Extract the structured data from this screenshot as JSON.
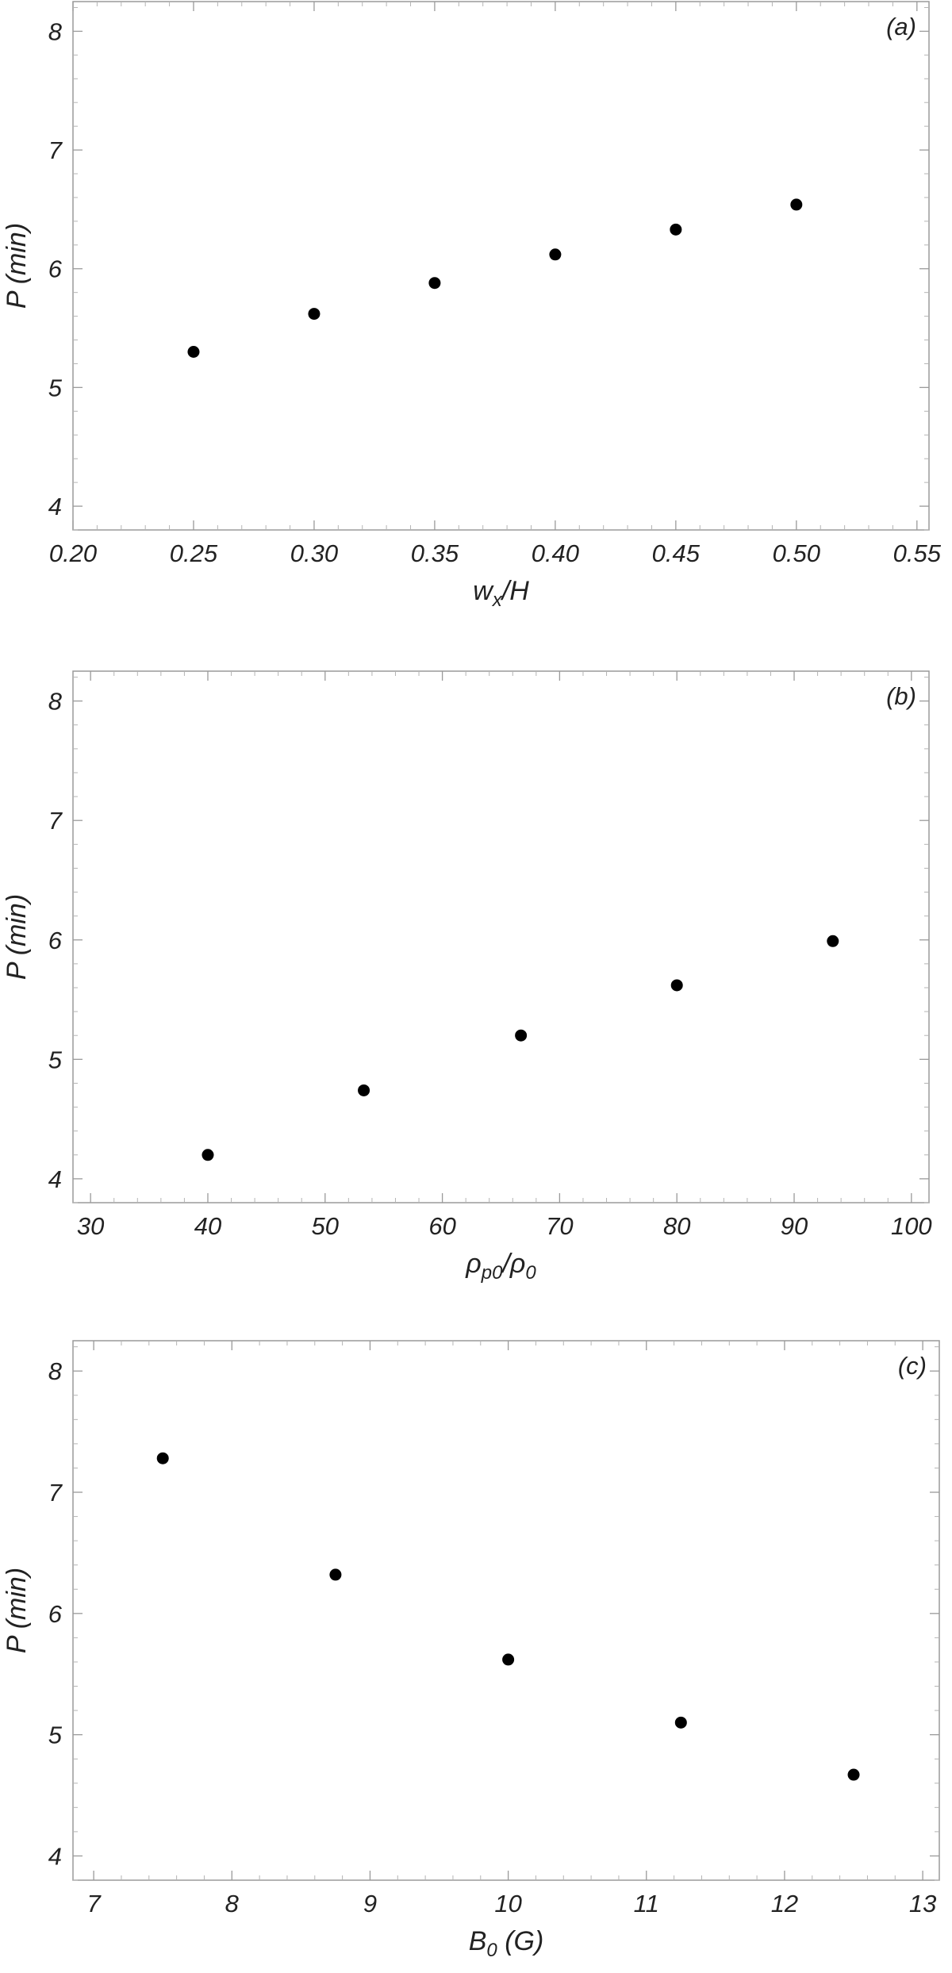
{
  "chart_data": [
    {
      "type": "scatter",
      "panel_label": "(a)",
      "x": [
        0.25,
        0.3,
        0.35,
        0.4,
        0.45,
        0.5
      ],
      "y": [
        5.3,
        5.62,
        5.88,
        6.12,
        6.33,
        6.54
      ],
      "xlim": [
        0.2,
        0.555
      ],
      "ylim": [
        3.8,
        8.25
      ],
      "xticks": [
        "0.20",
        "0.25",
        "0.30",
        "0.35",
        "0.40",
        "0.45",
        "0.50",
        "0.55"
      ],
      "yticks": [
        "4",
        "5",
        "6",
        "7",
        "8"
      ],
      "xlabel": {
        "base": "w",
        "sub": "x",
        "rest": "/H"
      },
      "ylabel": "P (min)",
      "grid": false,
      "marker_color": "#000000"
    },
    {
      "type": "scatter",
      "panel_label": "(b)",
      "x": [
        40.0,
        53.3,
        66.7,
        80.0,
        93.3
      ],
      "y": [
        4.2,
        4.74,
        5.2,
        5.62,
        5.99
      ],
      "xlim": [
        28.5,
        101.5
      ],
      "ylim": [
        3.8,
        8.25
      ],
      "xticks": [
        "30",
        "40",
        "50",
        "60",
        "70",
        "80",
        "90",
        "100"
      ],
      "yticks": [
        "4",
        "5",
        "6",
        "7",
        "8"
      ],
      "xlabel": {
        "base": "ρ",
        "sub": "p0",
        "rest": "/ρ",
        "sub2": "0"
      },
      "ylabel": "P (min)",
      "grid": false,
      "marker_color": "#000000"
    },
    {
      "type": "scatter",
      "panel_label": "(c)",
      "x": [
        7.5,
        8.75,
        10.0,
        11.25,
        12.5
      ],
      "y": [
        7.28,
        6.32,
        5.62,
        5.1,
        4.67
      ],
      "xlim": [
        6.85,
        13.12
      ],
      "ylim": [
        3.8,
        8.25
      ],
      "xticks": [
        "7",
        "8",
        "9",
        "10",
        "11",
        "12",
        "13"
      ],
      "yticks": [
        "4",
        "5",
        "6",
        "7",
        "8"
      ],
      "xlabel": {
        "base": "B",
        "sub": "0",
        "rest": " (G)"
      },
      "ylabel": "P (min)",
      "grid": false,
      "marker_color": "#000000"
    }
  ]
}
